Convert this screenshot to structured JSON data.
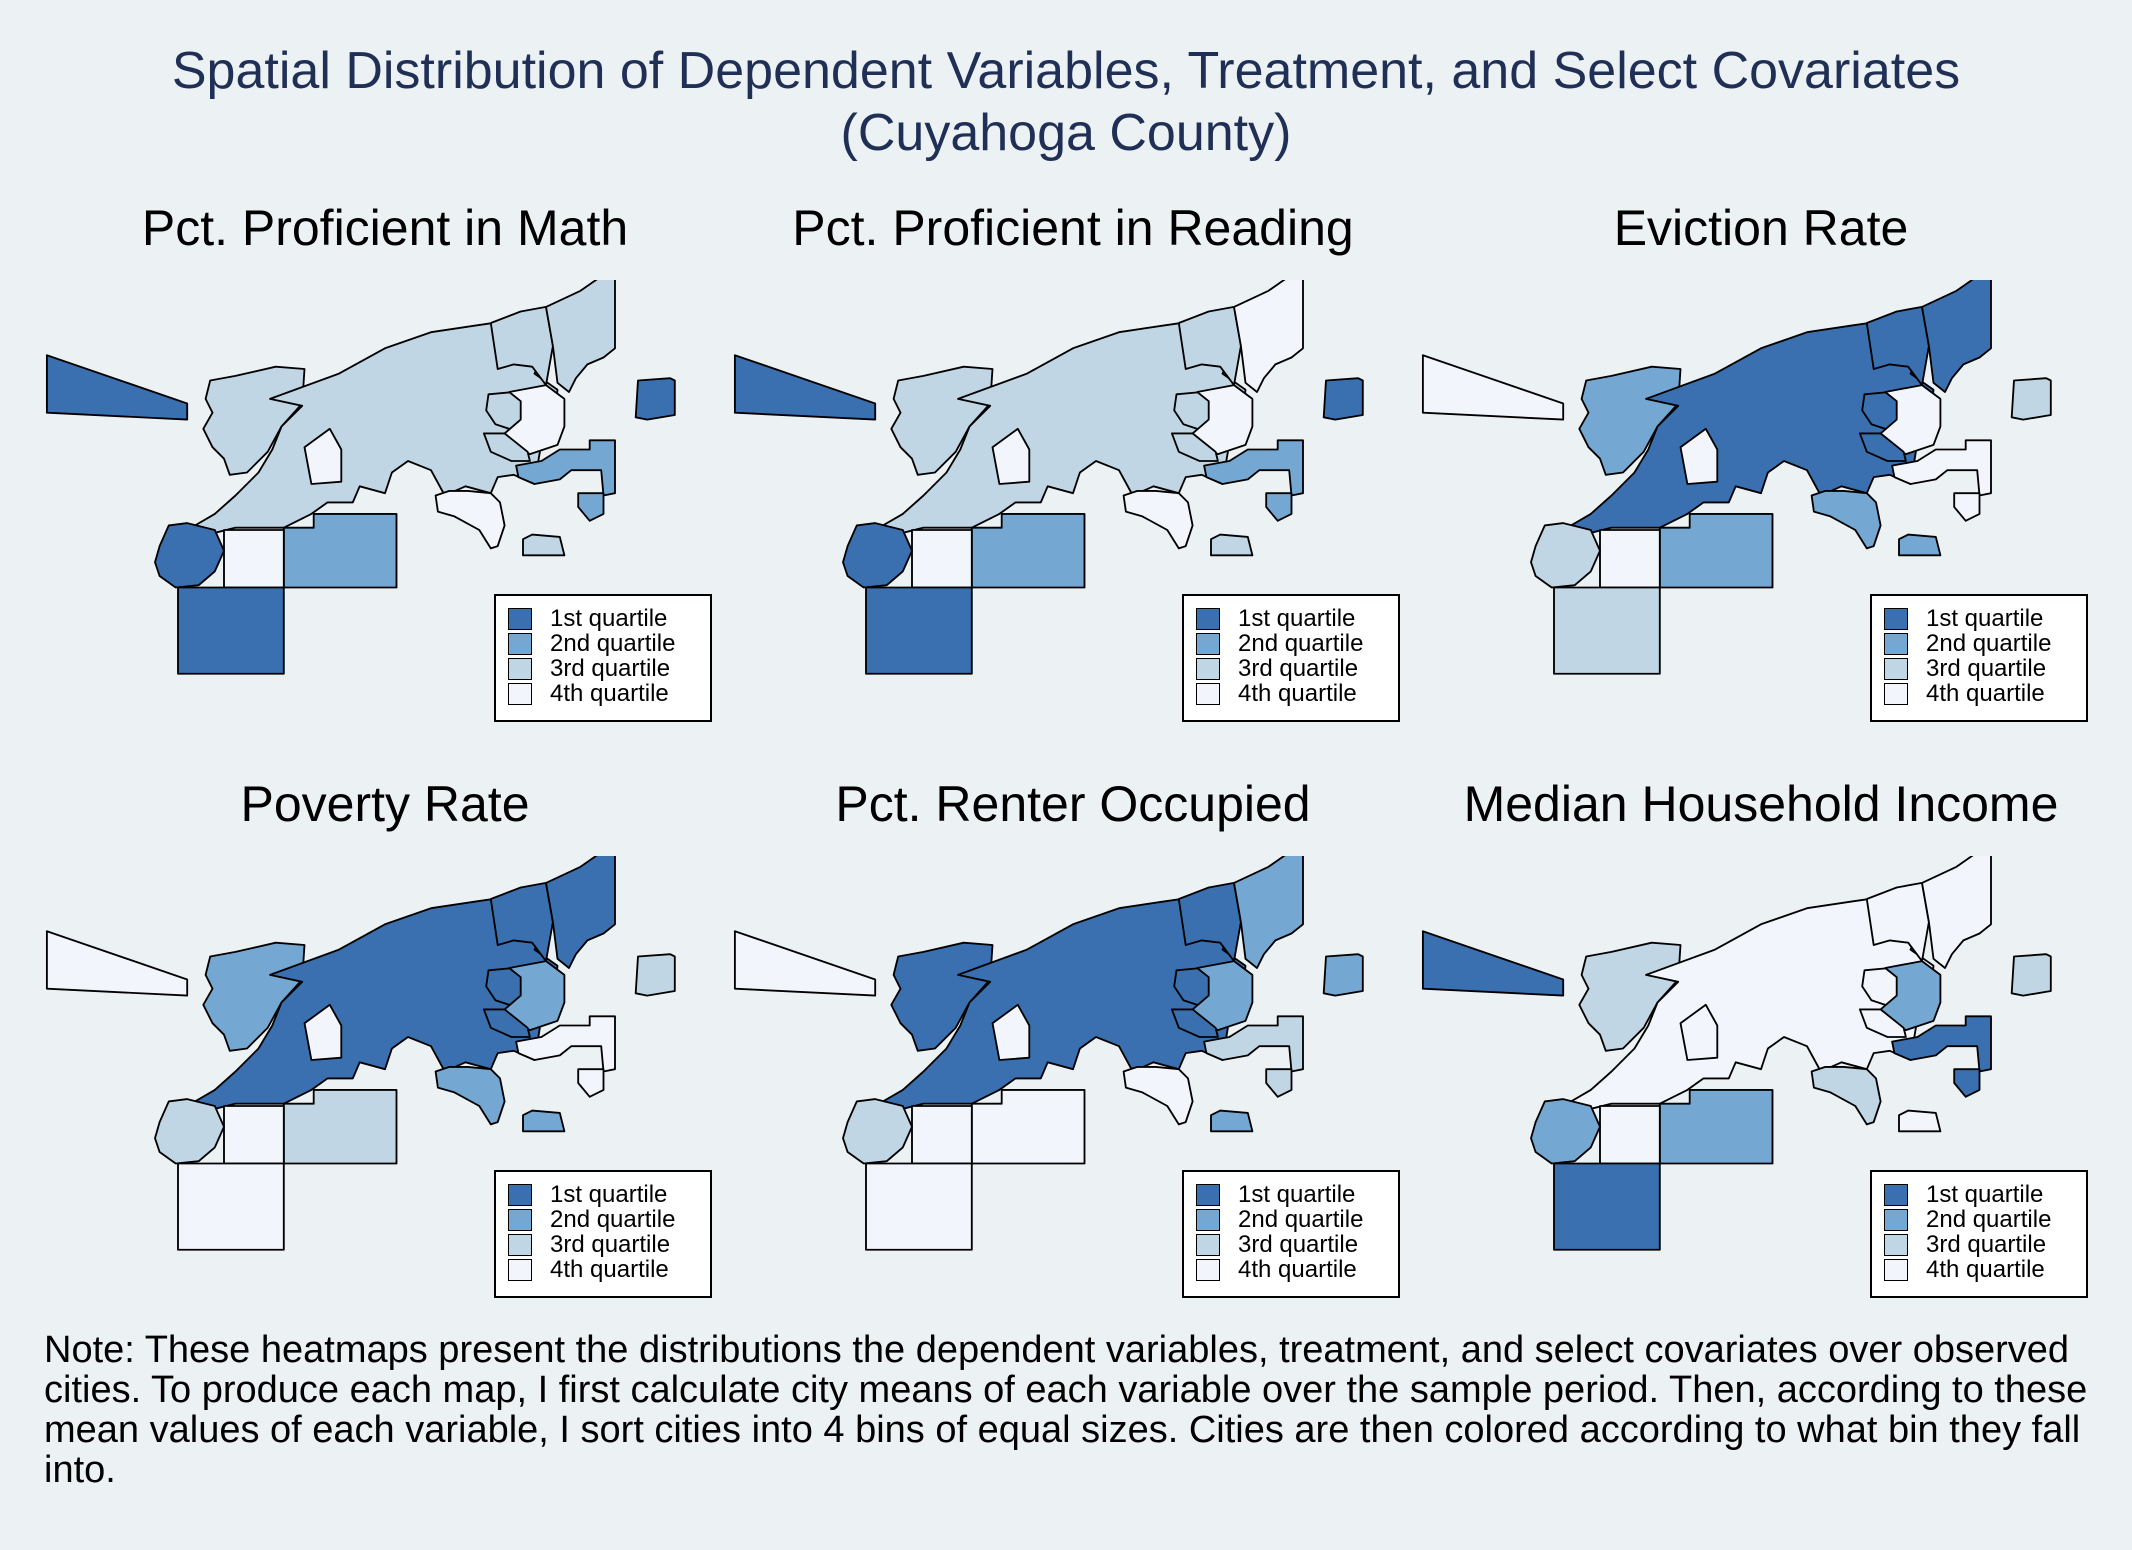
{
  "title": {
    "line1": "Spatial Distribution of Dependent Variables, Treatment, and Select Covariates",
    "line2": "(Cuyahoga County)"
  },
  "colors": {
    "q1": "#3a70b0",
    "q2": "#74a8d3",
    "q3": "#c1d6e5",
    "q4": "#f2f5fc",
    "outline": "#000000",
    "background": "#ecf1f4"
  },
  "legend": {
    "labels": [
      "1st quartile",
      "2nd quartile",
      "3rd quartile",
      "4th quartile"
    ]
  },
  "regions": [
    "west-strip",
    "lakewood-edge",
    "main-cleveland",
    "north-coast",
    "north-tip",
    "far-east",
    "inner-ring",
    "east-mid",
    "east-north",
    "east-center",
    "east-south",
    "southeast",
    "south-east-small",
    "central-south",
    "south-central",
    "southwest-small",
    "southwest-large",
    "central-notch"
  ],
  "maps": [
    {
      "title": "Pct. Proficient in Math",
      "quartiles": {
        "west-strip": 1,
        "lakewood-edge": 3,
        "main-cleveland": 3,
        "north-coast": 3,
        "north-tip": 3,
        "far-east": 1,
        "inner-ring": 3,
        "east-mid": 4,
        "east-north": 3,
        "east-center": 2,
        "east-south": 2,
        "southeast": 4,
        "south-east-small": 3,
        "central-south": 2,
        "south-central": 4,
        "southwest-small": 1,
        "southwest-large": 1,
        "central-notch": 4
      }
    },
    {
      "title": "Pct. Proficient in Reading",
      "quartiles": {
        "west-strip": 1,
        "lakewood-edge": 3,
        "main-cleveland": 3,
        "north-coast": 3,
        "north-tip": 4,
        "far-east": 1,
        "inner-ring": 3,
        "east-mid": 4,
        "east-north": 3,
        "east-center": 2,
        "east-south": 2,
        "southeast": 4,
        "south-east-small": 3,
        "central-south": 2,
        "south-central": 4,
        "southwest-small": 1,
        "southwest-large": 1,
        "central-notch": 4
      }
    },
    {
      "title": "Eviction Rate",
      "quartiles": {
        "west-strip": 4,
        "lakewood-edge": 2,
        "main-cleveland": 1,
        "north-coast": 1,
        "north-tip": 1,
        "far-east": 3,
        "inner-ring": 1,
        "east-mid": 4,
        "east-north": 1,
        "east-center": 4,
        "east-south": 4,
        "southeast": 2,
        "south-east-small": 2,
        "central-south": 2,
        "south-central": 4,
        "southwest-small": 3,
        "southwest-large": 3,
        "central-notch": 4
      }
    },
    {
      "title": "Poverty Rate",
      "quartiles": {
        "west-strip": 4,
        "lakewood-edge": 2,
        "main-cleveland": 1,
        "north-coast": 1,
        "north-tip": 1,
        "far-east": 3,
        "inner-ring": 1,
        "east-mid": 2,
        "east-north": 1,
        "east-center": 4,
        "east-south": 4,
        "southeast": 2,
        "south-east-small": 2,
        "central-south": 3,
        "south-central": 4,
        "southwest-small": 3,
        "southwest-large": 4,
        "central-notch": 4
      }
    },
    {
      "title": "Pct. Renter Occupied",
      "quartiles": {
        "west-strip": 4,
        "lakewood-edge": 1,
        "main-cleveland": 1,
        "north-coast": 1,
        "north-tip": 2,
        "far-east": 2,
        "inner-ring": 1,
        "east-mid": 2,
        "east-north": 1,
        "east-center": 3,
        "east-south": 3,
        "southeast": 4,
        "south-east-small": 2,
        "central-south": 4,
        "south-central": 4,
        "southwest-small": 3,
        "southwest-large": 4,
        "central-notch": 4
      }
    },
    {
      "title": "Median Household Income",
      "quartiles": {
        "west-strip": 1,
        "lakewood-edge": 3,
        "main-cleveland": 4,
        "north-coast": 4,
        "north-tip": 4,
        "far-east": 3,
        "inner-ring": 4,
        "east-mid": 2,
        "east-north": 4,
        "east-center": 1,
        "east-south": 1,
        "southeast": 3,
        "south-east-small": 4,
        "central-south": 2,
        "south-central": 4,
        "southwest-small": 2,
        "southwest-large": 1,
        "central-notch": 4
      }
    }
  ],
  "note": "Note: These heatmaps present the distributions the dependent variables, treatment, and select covariates over observed cities. To produce each map, I first calculate city means of each variable over the sample period. Then, according to these mean values of each variable, I sort cities into 4 bins of equal sizes. Cities are then colored according to what bin they fall into."
}
